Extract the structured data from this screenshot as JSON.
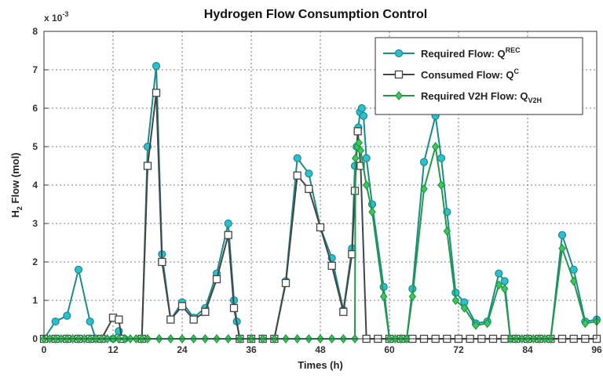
{
  "chart_data": {
    "type": "line",
    "title": "Hydrogen Flow Consumption Control",
    "xlabel": "Times (h)",
    "ylabel_main": "H",
    "ylabel_sub": "2",
    "ylabel_rest": " Flow (mol)",
    "y_multiplier": "x 10",
    "y_multiplier_exp": "-3",
    "xlim": [
      0,
      96
    ],
    "ylim": [
      0,
      8
    ],
    "xticks": [
      0,
      12,
      24,
      36,
      48,
      60,
      72,
      84,
      96
    ],
    "yticks": [
      0,
      1,
      2,
      3,
      4,
      5,
      6,
      7,
      8
    ],
    "grid": true,
    "legend_position": "top-right",
    "series": [
      {
        "name_main": "Required Flow: Q",
        "name_sup": "REC",
        "name_sub": "",
        "color": "#1a8a8a",
        "marker_fill": "#2bbfcf",
        "marker": "circle",
        "points": [
          [
            0,
            0
          ],
          [
            2,
            0.45
          ],
          [
            4,
            0.6
          ],
          [
            6,
            1.8
          ],
          [
            8,
            0.45
          ],
          [
            9,
            0
          ],
          [
            12,
            0
          ],
          [
            13,
            0.2
          ],
          [
            14,
            0
          ],
          [
            17,
            0
          ],
          [
            18,
            5.0
          ],
          [
            19.5,
            7.1
          ],
          [
            20.5,
            2.2
          ],
          [
            22,
            0.5
          ],
          [
            24,
            0.95
          ],
          [
            26,
            0.55
          ],
          [
            28,
            0.8
          ],
          [
            30,
            1.7
          ],
          [
            32,
            3.0
          ],
          [
            33,
            1.0
          ],
          [
            33.5,
            0.45
          ],
          [
            34,
            0
          ],
          [
            40,
            0
          ],
          [
            42,
            1.5
          ],
          [
            44,
            4.7
          ],
          [
            46,
            4.3
          ],
          [
            48,
            2.9
          ],
          [
            50,
            2.1
          ],
          [
            52,
            0.75
          ],
          [
            53.5,
            2.35
          ],
          [
            54,
            4.5
          ],
          [
            54.3,
            5.0
          ],
          [
            54.6,
            5.5
          ],
          [
            54.9,
            5.9
          ],
          [
            55.2,
            6.0
          ],
          [
            55.5,
            5.8
          ],
          [
            56,
            4.7
          ],
          [
            57,
            3.5
          ],
          [
            59,
            1.35
          ],
          [
            60,
            0
          ],
          [
            63,
            0
          ],
          [
            64,
            1.3
          ],
          [
            66,
            4.6
          ],
          [
            68,
            5.8
          ],
          [
            69,
            4.7
          ],
          [
            70,
            3.3
          ],
          [
            71.5,
            1.2
          ],
          [
            73,
            0.95
          ],
          [
            75,
            0.4
          ],
          [
            77,
            0.45
          ],
          [
            79,
            1.7
          ],
          [
            80,
            1.5
          ],
          [
            81,
            0
          ],
          [
            88,
            0
          ],
          [
            90,
            2.7
          ],
          [
            92,
            1.8
          ],
          [
            94,
            0.45
          ],
          [
            96,
            0.5
          ]
        ]
      },
      {
        "name_main": "Consumed Flow: Q",
        "name_sup": "C",
        "name_sub": "",
        "color": "#444444",
        "marker_fill": "#ffffff",
        "marker": "square",
        "points": [
          [
            0,
            0
          ],
          [
            2,
            0
          ],
          [
            4,
            0
          ],
          [
            6,
            0
          ],
          [
            8,
            0
          ],
          [
            10,
            0
          ],
          [
            12,
            0.55
          ],
          [
            13,
            0.5
          ],
          [
            13.5,
            0
          ],
          [
            17,
            0
          ],
          [
            18,
            4.5
          ],
          [
            19.5,
            6.4
          ],
          [
            20.5,
            2.0
          ],
          [
            22,
            0.5
          ],
          [
            24,
            0.85
          ],
          [
            26,
            0.5
          ],
          [
            28,
            0.7
          ],
          [
            30,
            1.55
          ],
          [
            32,
            2.7
          ],
          [
            33,
            0.8
          ],
          [
            34,
            0
          ],
          [
            36,
            0
          ],
          [
            38,
            0
          ],
          [
            40,
            0
          ],
          [
            42,
            1.45
          ],
          [
            44,
            4.25
          ],
          [
            46,
            3.9
          ],
          [
            48,
            2.9
          ],
          [
            50,
            1.9
          ],
          [
            52,
            0.7
          ],
          [
            53.5,
            2.2
          ],
          [
            54,
            3.85
          ],
          [
            54.5,
            5.4
          ],
          [
            55,
            4.5
          ],
          [
            56,
            0
          ],
          [
            58,
            0
          ],
          [
            60,
            0
          ],
          [
            62,
            0
          ],
          [
            64,
            0
          ],
          [
            66,
            0
          ],
          [
            68,
            0
          ],
          [
            70,
            0
          ],
          [
            72,
            0
          ],
          [
            74,
            0
          ],
          [
            76,
            0
          ],
          [
            78,
            0
          ],
          [
            80,
            0
          ],
          [
            82,
            0
          ],
          [
            84,
            0
          ],
          [
            86,
            0
          ],
          [
            88,
            0
          ],
          [
            90,
            0
          ],
          [
            92,
            0
          ],
          [
            94,
            0
          ],
          [
            96,
            0
          ]
        ]
      },
      {
        "name_main": "Required V2H Flow: Q",
        "name_sup": "",
        "name_sub": "V2H",
        "color": "#1e9a46",
        "marker_fill": "#3cc85a",
        "marker": "diamond",
        "points": [
          [
            0,
            0
          ],
          [
            1,
            0
          ],
          [
            2,
            0
          ],
          [
            3,
            0
          ],
          [
            4,
            0
          ],
          [
            5,
            0
          ],
          [
            6,
            0
          ],
          [
            7,
            0
          ],
          [
            8,
            0
          ],
          [
            9,
            0
          ],
          [
            10,
            0
          ],
          [
            11,
            0
          ],
          [
            12,
            0
          ],
          [
            13,
            0
          ],
          [
            14,
            0
          ],
          [
            15,
            0
          ],
          [
            16,
            0
          ],
          [
            17,
            0
          ],
          [
            18,
            0
          ],
          [
            20,
            0
          ],
          [
            22,
            0
          ],
          [
            24,
            0
          ],
          [
            26,
            0
          ],
          [
            28,
            0
          ],
          [
            30,
            0
          ],
          [
            32,
            0
          ],
          [
            34,
            0
          ],
          [
            36,
            0
          ],
          [
            38,
            0
          ],
          [
            40,
            0
          ],
          [
            42,
            0
          ],
          [
            44,
            0
          ],
          [
            46,
            0
          ],
          [
            48,
            0
          ],
          [
            50,
            0
          ],
          [
            52,
            0
          ],
          [
            54,
            0
          ],
          [
            54.1,
            4.7
          ],
          [
            54.4,
            5.0
          ],
          [
            54.7,
            5.1
          ],
          [
            55,
            4.9
          ],
          [
            56,
            4.0
          ],
          [
            57,
            3.3
          ],
          [
            59,
            1.1
          ],
          [
            60,
            0
          ],
          [
            61,
            0
          ],
          [
            62,
            0
          ],
          [
            63,
            0
          ],
          [
            64,
            1.1
          ],
          [
            66,
            3.9
          ],
          [
            68,
            5.0
          ],
          [
            69,
            4.0
          ],
          [
            70,
            2.8
          ],
          [
            71.5,
            1.0
          ],
          [
            73,
            0.8
          ],
          [
            75,
            0.35
          ],
          [
            77,
            0.4
          ],
          [
            79,
            1.4
          ],
          [
            80,
            1.3
          ],
          [
            81,
            0
          ],
          [
            82,
            0
          ],
          [
            83,
            0
          ],
          [
            84,
            0
          ],
          [
            85,
            0
          ],
          [
            86,
            0
          ],
          [
            87,
            0
          ],
          [
            88,
            0
          ],
          [
            90,
            2.35
          ],
          [
            92,
            1.5
          ],
          [
            94,
            0.4
          ],
          [
            96,
            0.45
          ]
        ]
      }
    ]
  }
}
